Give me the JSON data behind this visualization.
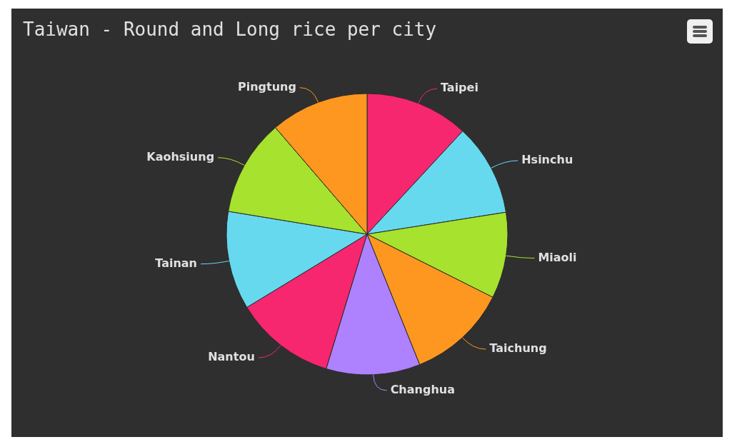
{
  "chart_data": {
    "type": "pie",
    "title": "Taiwan - Round and Long rice per city",
    "categories": [
      "Taipei",
      "Hsinchu",
      "Miaoli",
      "Taichung",
      "Changhua",
      "Nantou",
      "Tainan",
      "Kaohsiung",
      "Pingtung"
    ],
    "values": [
      11.9,
      10.6,
      9.9,
      11.5,
      10.8,
      11.6,
      11.3,
      11.1,
      11.3
    ],
    "colors": [
      "#f6266f",
      "#66d9ef",
      "#a6e22e",
      "#fd971f",
      "#ae81ff",
      "#f6266f",
      "#66d9ef",
      "#a6e22e",
      "#fd971f"
    ],
    "legend": false
  }
}
